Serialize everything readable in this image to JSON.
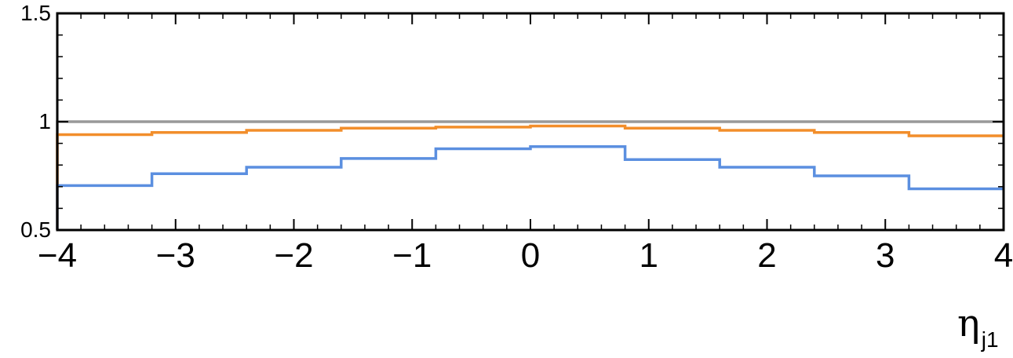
{
  "chart_data": {
    "type": "line",
    "step": true,
    "title": "",
    "xlabel": "η",
    "xlabel_subscript": "j1",
    "ylabel": "",
    "xlim": [
      -4,
      4
    ],
    "ylim": [
      0.5,
      1.5
    ],
    "x_ticks": [
      -4,
      -3,
      -2,
      -1,
      0,
      1,
      2,
      3,
      4
    ],
    "x_tick_labels": [
      "−4",
      "−3",
      "−2",
      "−1",
      "0",
      "1",
      "2",
      "3",
      "4"
    ],
    "y_ticks": [
      0.5,
      1,
      1.5
    ],
    "y_tick_labels": [
      "0.5",
      "1",
      "1.5"
    ],
    "bin_edges": [
      -4,
      -3.2,
      -2.4,
      -1.6,
      -0.8,
      0,
      0.8,
      1.6,
      2.4,
      3.2,
      4
    ],
    "series": [
      {
        "color": "#999999",
        "values": [
          1.0,
          1.0,
          1.0,
          1.0,
          1.0,
          1.0,
          1.0,
          1.0,
          1.0,
          1.0
        ]
      },
      {
        "color": "#f28e2b",
        "values": [
          0.94,
          0.95,
          0.96,
          0.97,
          0.975,
          0.98,
          0.97,
          0.96,
          0.95,
          0.935
        ]
      },
      {
        "color": "#5b8fe0",
        "values": [
          0.705,
          0.76,
          0.79,
          0.83,
          0.875,
          0.885,
          0.825,
          0.79,
          0.75,
          0.69
        ]
      }
    ],
    "grid": false,
    "legend": "none"
  }
}
